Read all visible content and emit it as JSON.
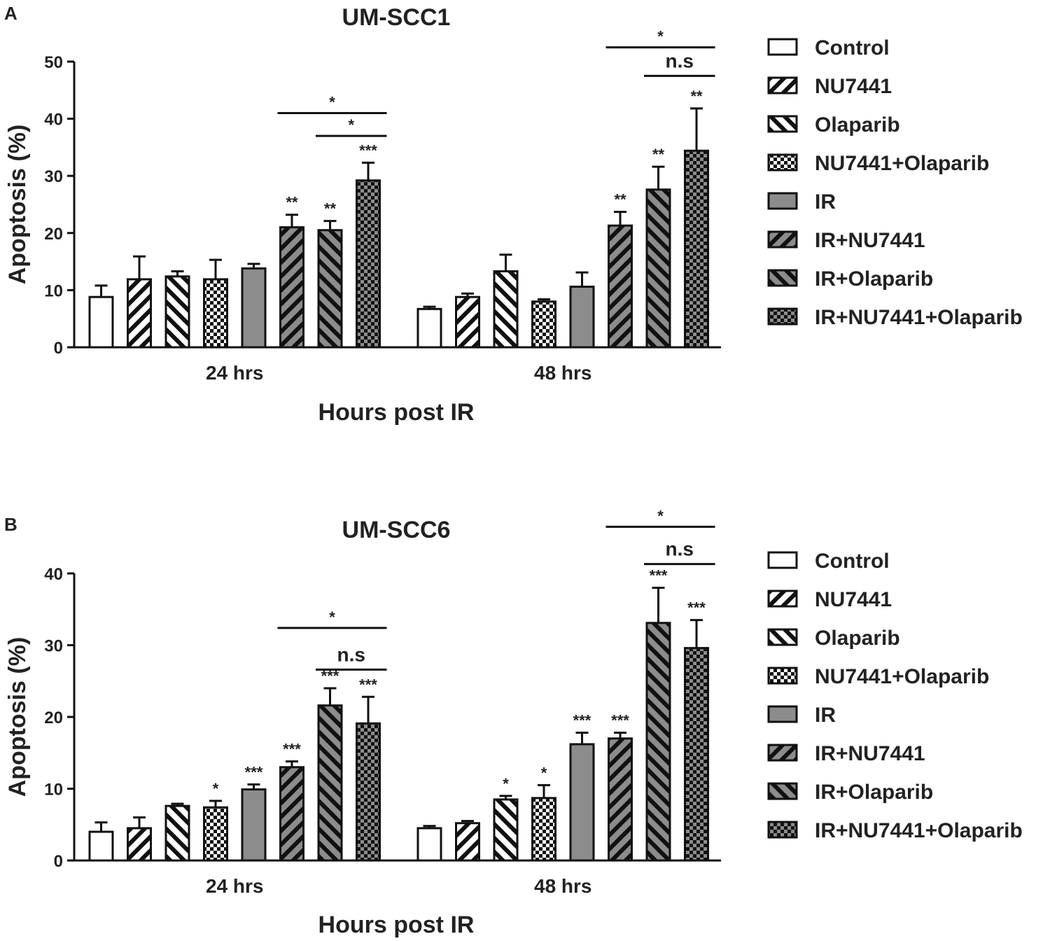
{
  "colors": {
    "white": "#ffffff",
    "gray": "#8c8c8c",
    "ink": "#111111"
  },
  "legend_items": [
    {
      "label": "Control",
      "pattern": "pat-white-solid"
    },
    {
      "label": "NU7441",
      "pattern": "pat-white-fwd"
    },
    {
      "label": "Olaparib",
      "pattern": "pat-white-back"
    },
    {
      "label": "NU7441+Olaparib",
      "pattern": "pat-white-check"
    },
    {
      "label": "IR",
      "pattern": "pat-gray-solid"
    },
    {
      "label": "IR+NU7441",
      "pattern": "pat-gray-fwd"
    },
    {
      "label": "IR+Olaparib",
      "pattern": "pat-gray-back"
    },
    {
      "label": "IR+NU7441+Olaparib",
      "pattern": "pat-gray-check"
    }
  ],
  "chart_data": [
    {
      "type": "bar",
      "panel": "A",
      "title": "UM-SCC1",
      "xlabel": "Hours post IR",
      "ylabel": "Apoptosis (%)",
      "ylim": [
        0,
        50
      ],
      "yticks": [
        0,
        10,
        20,
        30,
        40,
        50
      ],
      "categories": [
        "24 hrs",
        "48 hrs"
      ],
      "series": [
        {
          "name": "Control",
          "values": [
            8.8,
            6.7
          ],
          "errors": [
            2.0,
            0.4
          ],
          "sig": [
            "",
            ""
          ]
        },
        {
          "name": "NU7441",
          "values": [
            11.9,
            8.8
          ],
          "errors": [
            4.0,
            0.6
          ],
          "sig": [
            "",
            ""
          ]
        },
        {
          "name": "Olaparib",
          "values": [
            12.4,
            13.3
          ],
          "errors": [
            0.9,
            2.9
          ],
          "sig": [
            "",
            ""
          ]
        },
        {
          "name": "NU7441+Olaparib",
          "values": [
            11.9,
            8.0
          ],
          "errors": [
            3.4,
            0.4
          ],
          "sig": [
            "",
            ""
          ]
        },
        {
          "name": "IR",
          "values": [
            13.8,
            10.6
          ],
          "errors": [
            0.8,
            2.5
          ],
          "sig": [
            "",
            ""
          ]
        },
        {
          "name": "IR+NU7441",
          "values": [
            21.0,
            21.3
          ],
          "errors": [
            2.2,
            2.4
          ],
          "sig": [
            "**",
            "**"
          ]
        },
        {
          "name": "IR+Olaparib",
          "values": [
            20.5,
            27.6
          ],
          "errors": [
            1.6,
            4.0
          ],
          "sig": [
            "**",
            "**"
          ]
        },
        {
          "name": "IR+NU7441+Olaparib",
          "values": [
            29.2,
            34.4
          ],
          "errors": [
            3.1,
            7.4
          ],
          "sig": [
            "***",
            "**"
          ]
        }
      ],
      "comparisons": [
        {
          "group": "24 hrs",
          "from": "IR+NU7441",
          "to": "IR+NU7441+Olaparib",
          "y": 41.0,
          "label": "*"
        },
        {
          "group": "24 hrs",
          "from": "IR+Olaparib",
          "to": "IR+NU7441+Olaparib",
          "y": 37.0,
          "label": "*"
        },
        {
          "group": "48 hrs",
          "from": "IR+NU7441",
          "to": "IR+NU7441+Olaparib",
          "y": 52.5,
          "label": "*"
        },
        {
          "group": "48 hrs",
          "from": "IR+Olaparib",
          "to": "IR+NU7441+Olaparib",
          "y": 47.5,
          "label": "n.s"
        }
      ]
    },
    {
      "type": "bar",
      "panel": "B",
      "title": "UM-SCC6",
      "xlabel": "Hours post IR",
      "ylabel": "Apoptosis (%)",
      "ylim": [
        0,
        40
      ],
      "yticks": [
        0,
        10,
        20,
        30,
        40
      ],
      "categories": [
        "24 hrs",
        "48 hrs"
      ],
      "series": [
        {
          "name": "Control",
          "values": [
            4.0,
            4.5
          ],
          "errors": [
            1.3,
            0.3
          ],
          "sig": [
            "",
            ""
          ]
        },
        {
          "name": "NU7441",
          "values": [
            4.5,
            5.2
          ],
          "errors": [
            1.5,
            0.3
          ],
          "sig": [
            "",
            ""
          ]
        },
        {
          "name": "Olaparib",
          "values": [
            7.6,
            8.5
          ],
          "errors": [
            0.3,
            0.5
          ],
          "sig": [
            "",
            "*"
          ]
        },
        {
          "name": "NU7441+Olaparib",
          "values": [
            7.4,
            8.7
          ],
          "errors": [
            0.9,
            1.8
          ],
          "sig": [
            "*",
            "*"
          ]
        },
        {
          "name": "IR",
          "values": [
            9.9,
            16.2
          ],
          "errors": [
            0.7,
            1.6
          ],
          "sig": [
            "***",
            "***"
          ]
        },
        {
          "name": "IR+NU7441",
          "values": [
            13.0,
            17.0
          ],
          "errors": [
            0.8,
            0.8
          ],
          "sig": [
            "***",
            "***"
          ]
        },
        {
          "name": "IR+Olaparib",
          "values": [
            21.6,
            33.1
          ],
          "errors": [
            2.4,
            4.9
          ],
          "sig": [
            "***",
            "***"
          ]
        },
        {
          "name": "IR+NU7441+Olaparib",
          "values": [
            19.1,
            29.6
          ],
          "errors": [
            3.7,
            3.9
          ],
          "sig": [
            "***",
            "***"
          ]
        }
      ],
      "comparisons": [
        {
          "group": "24 hrs",
          "from": "IR+NU7441",
          "to": "IR+NU7441+Olaparib",
          "y": 32.4,
          "label": "*"
        },
        {
          "group": "24 hrs",
          "from": "IR+Olaparib",
          "to": "IR+NU7441+Olaparib",
          "y": 26.6,
          "label": "n.s"
        },
        {
          "group": "48 hrs",
          "from": "IR+NU7441",
          "to": "IR+NU7441+Olaparib",
          "y": 46.5,
          "label": "*"
        },
        {
          "group": "48 hrs",
          "from": "IR+Olaparib",
          "to": "IR+NU7441+Olaparib",
          "y": 41.3,
          "label": "n.s"
        }
      ]
    }
  ]
}
